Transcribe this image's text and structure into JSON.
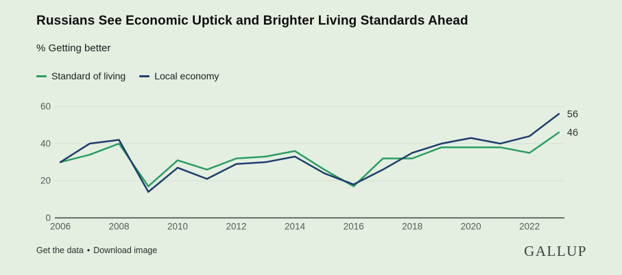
{
  "header": {
    "title": "Russians See Economic Uptick and Brighter Living Standards Ahead",
    "subtitle": "% Getting better"
  },
  "legend": {
    "items": [
      {
        "label": "Standard of living",
        "color": "#2a9d62"
      },
      {
        "label": "Local economy",
        "color": "#1e3d6e"
      }
    ]
  },
  "chart_data": {
    "type": "line",
    "title": "Russians See Economic Uptick and Brighter Living Standards Ahead",
    "subtitle": "% Getting better",
    "x": [
      2006,
      2007,
      2008,
      2009,
      2010,
      2011,
      2012,
      2013,
      2014,
      2015,
      2016,
      2017,
      2018,
      2019,
      2020,
      2021,
      2022,
      2023
    ],
    "series": [
      {
        "name": "Standard of living",
        "color": "#2a9d62",
        "values": [
          30,
          34,
          40,
          17,
          31,
          26,
          32,
          33,
          36,
          26,
          17,
          32,
          32,
          38,
          38,
          38,
          35,
          46
        ],
        "end_label": "46"
      },
      {
        "name": "Local economy",
        "color": "#1e3d6e",
        "values": [
          30,
          40,
          42,
          14,
          27,
          21,
          29,
          30,
          33,
          24,
          18,
          26,
          35,
          40,
          43,
          40,
          44,
          56
        ],
        "end_label": "56"
      }
    ],
    "ylim": [
      0,
      60
    ],
    "yticks": [
      0,
      20,
      40,
      60
    ],
    "xticks": [
      2006,
      2008,
      2010,
      2012,
      2014,
      2016,
      2018,
      2020,
      2022
    ],
    "grid": "horizontal",
    "legend_position": "top-left"
  },
  "colors": {
    "background": "#e4efe1",
    "gridline": "#d2e0d0",
    "axis": "#3f3f3f",
    "tick_text": "#595959",
    "end_label_text": "#2e2e2e"
  },
  "footer": {
    "link_get_data": "Get the data",
    "separator": "•",
    "link_download": "Download image",
    "brand": "GALLUP"
  }
}
